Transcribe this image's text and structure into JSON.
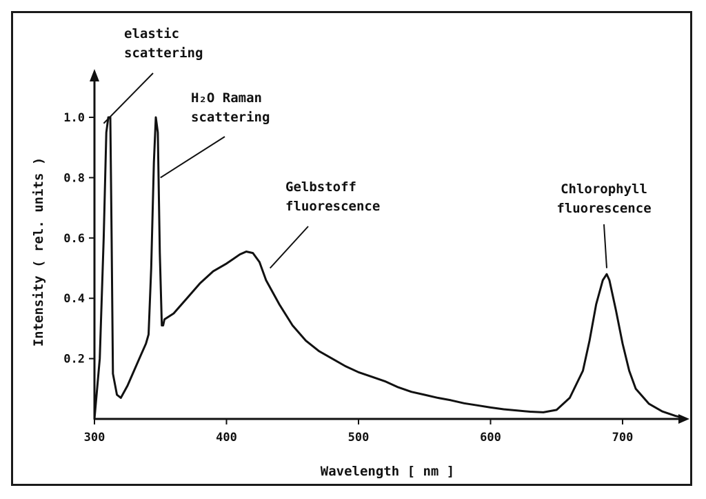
{
  "chart_data": {
    "type": "line",
    "title": "",
    "xlabel": "Wavelength  [ nm ]",
    "ylabel": "Intensity  ( rel. units )",
    "xlim": [
      300,
      760
    ],
    "ylim": [
      0,
      1.15
    ],
    "x_ticks": [
      300,
      400,
      500,
      600,
      700
    ],
    "x_tick_labels": [
      "300",
      "400",
      "500",
      "600",
      "700"
    ],
    "y_ticks": [
      0.2,
      0.4,
      0.6,
      0.8,
      1.0
    ],
    "y_tick_labels": [
      "0.2",
      "0.4",
      "0.6",
      "0.8",
      "1.0"
    ],
    "grid": false,
    "line_color": "#111111",
    "series": [
      {
        "x": [
          300,
          304,
          307,
          309,
          310.5,
          312,
          313,
          314,
          317,
          320,
          325,
          330,
          335,
          339,
          341,
          343,
          345,
          346.5,
          348,
          349.5,
          351,
          352,
          353,
          360,
          370,
          380,
          390,
          400,
          405,
          410,
          415,
          420,
          425,
          430,
          440,
          450,
          460,
          470,
          480,
          490,
          500,
          510,
          520,
          530,
          540,
          550,
          560,
          570,
          580,
          590,
          600,
          610,
          620,
          630,
          640,
          650,
          660,
          670,
          675,
          680,
          685,
          688,
          690,
          695,
          700,
          705,
          710,
          720,
          730,
          740,
          745
        ],
        "y": [
          0.0,
          0.2,
          0.6,
          0.95,
          1.0,
          1.0,
          0.6,
          0.15,
          0.08,
          0.07,
          0.11,
          0.16,
          0.21,
          0.25,
          0.28,
          0.5,
          0.85,
          1.0,
          0.95,
          0.55,
          0.31,
          0.31,
          0.33,
          0.35,
          0.4,
          0.45,
          0.49,
          0.515,
          0.53,
          0.545,
          0.555,
          0.55,
          0.52,
          0.46,
          0.38,
          0.31,
          0.26,
          0.225,
          0.2,
          0.175,
          0.155,
          0.14,
          0.125,
          0.105,
          0.09,
          0.08,
          0.07,
          0.062,
          0.052,
          0.045,
          0.038,
          0.032,
          0.028,
          0.024,
          0.022,
          0.03,
          0.07,
          0.16,
          0.26,
          0.38,
          0.46,
          0.48,
          0.46,
          0.36,
          0.25,
          0.16,
          0.1,
          0.05,
          0.025,
          0.01,
          0.005
        ]
      }
    ],
    "annotations": [
      {
        "lines": [
          "elastic",
          "scattering"
        ],
        "x": 307,
        "y": 0.98
      },
      {
        "lines": [
          "H₂O Raman",
          "scattering"
        ],
        "x": 350,
        "y": 0.8
      },
      {
        "lines": [
          "Gelbstoff",
          "fluorescence"
        ],
        "x": 433,
        "y": 0.5
      },
      {
        "lines": [
          "Chlorophyll",
          "fluorescence"
        ],
        "x": 688,
        "y": 0.5
      }
    ]
  }
}
